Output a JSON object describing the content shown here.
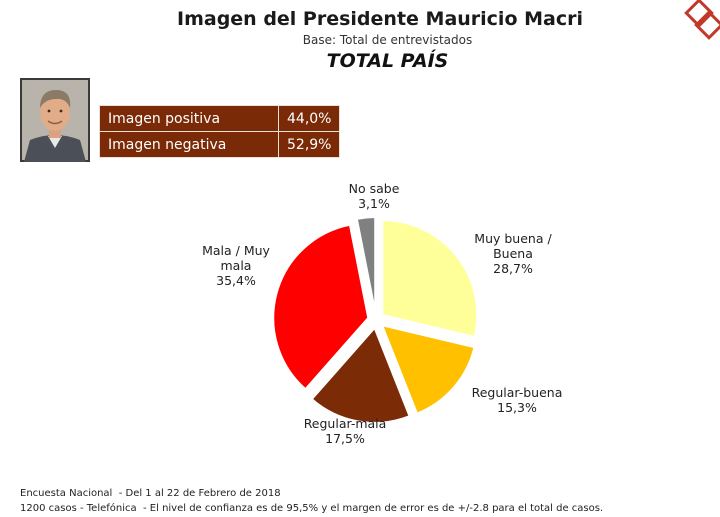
{
  "header": {
    "title": "Imagen del Presidente Mauricio Macri",
    "subtitle": "Base: Total de entrevistados",
    "subtitle2": "TOTAL PAÍS"
  },
  "image_table": {
    "rows": [
      {
        "label": "Imagen positiva",
        "value": "44,0%"
      },
      {
        "label": "Imagen negativa",
        "value": "52,9%"
      }
    ],
    "color": "#7a2a06"
  },
  "chart_data": {
    "type": "pie",
    "slices": [
      {
        "label_lines": [
          "Muy buena /",
          "Buena"
        ],
        "value": 28.7,
        "value_label": "28,7%",
        "color": "#ffff99"
      },
      {
        "label_lines": [
          "Regular-buena"
        ],
        "value": 15.3,
        "value_label": "15,3%",
        "color": "#ffc000"
      },
      {
        "label_lines": [
          "Regular-mala"
        ],
        "value": 17.5,
        "value_label": "17,5%",
        "color": "#7b2c07"
      },
      {
        "label_lines": [
          "Mala / Muy",
          "mala"
        ],
        "value": 35.4,
        "value_label": "35,4%",
        "color": "#ff0000"
      },
      {
        "label_lines": [
          "No sabe"
        ],
        "value": 3.1,
        "value_label": "3,1%",
        "color": "#808080"
      }
    ],
    "start_position": "top, clockwise",
    "exploded": true
  },
  "footer": {
    "line1_a": "Encuesta Nacional",
    "line1_b": "- Del 1 al 22 de Febrero de 2018",
    "line2_a": "1200 casos - Telefónica",
    "line2_b": "- El nivel de confianza es de 95,5% y el margen de error es de +/-2.8 para el total de casos."
  },
  "logo": {
    "color": "#c0392b"
  },
  "photo": {
    "icon": "portrait-photo"
  }
}
